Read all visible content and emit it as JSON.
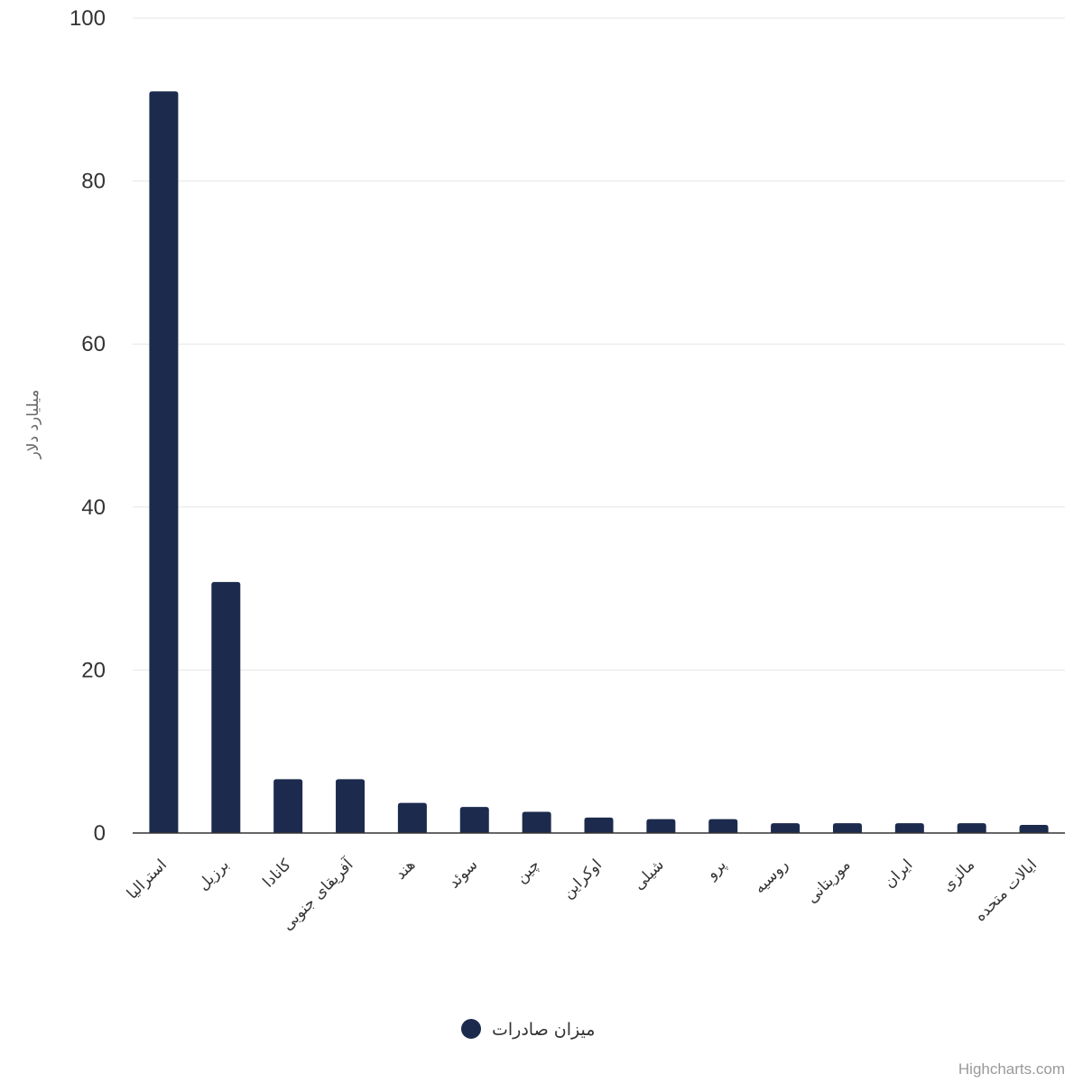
{
  "chart_data": {
    "type": "bar",
    "categories": [
      "استرالیا",
      "برزیل",
      "کانادا",
      "آفریقای جنوبی",
      "هند",
      "سوئد",
      "چین",
      "اوکراین",
      "شیلی",
      "پرو",
      "روسیه",
      "موریتانی",
      "ایران",
      "مالزی",
      "ایالات متحده"
    ],
    "series": [
      {
        "name": "میزان صادرات",
        "values": [
          91,
          30.8,
          6.6,
          6.6,
          3.7,
          3.2,
          2.6,
          1.9,
          1.7,
          1.7,
          1.2,
          1.2,
          1.2,
          1.2,
          1
        ]
      }
    ],
    "ylabel": "میلیارد دلار",
    "xlabel": "",
    "ylim": [
      0,
      100
    ],
    "yticks": [
      0,
      20,
      40,
      60,
      80,
      100
    ],
    "grid": true,
    "legend": "bottom-center",
    "colors": {
      "series": "#1c2b4d"
    }
  },
  "credits": "Highcharts.com"
}
